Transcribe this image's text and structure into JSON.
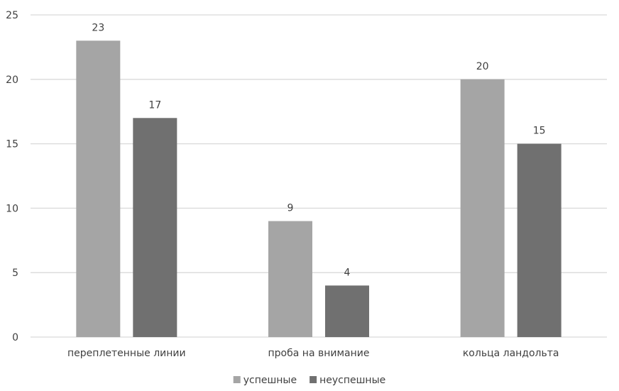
{
  "colors": {
    "background": "#ffffff",
    "gridline": "#d9d9d9",
    "axis_line": "#d9d9d9",
    "text": "#404040"
  },
  "chart_data": {
    "type": "bar",
    "title": "",
    "xlabel": "",
    "ylabel": "",
    "categories": [
      "переплетенные линии",
      "проба на внимание",
      "кольца ландольта"
    ],
    "series": [
      {
        "name": "успешные",
        "values": [
          23,
          9,
          20
        ],
        "color": "#a5a5a5"
      },
      {
        "name": "неуспешные",
        "values": [
          17,
          4,
          15
        ],
        "color": "#707070"
      }
    ],
    "ylim": [
      0,
      25
    ],
    "yticks": [
      "0",
      "5",
      "10",
      "15",
      "20",
      "25"
    ],
    "grid": true,
    "data_labels": true,
    "legend": {
      "position": "bottom"
    }
  }
}
